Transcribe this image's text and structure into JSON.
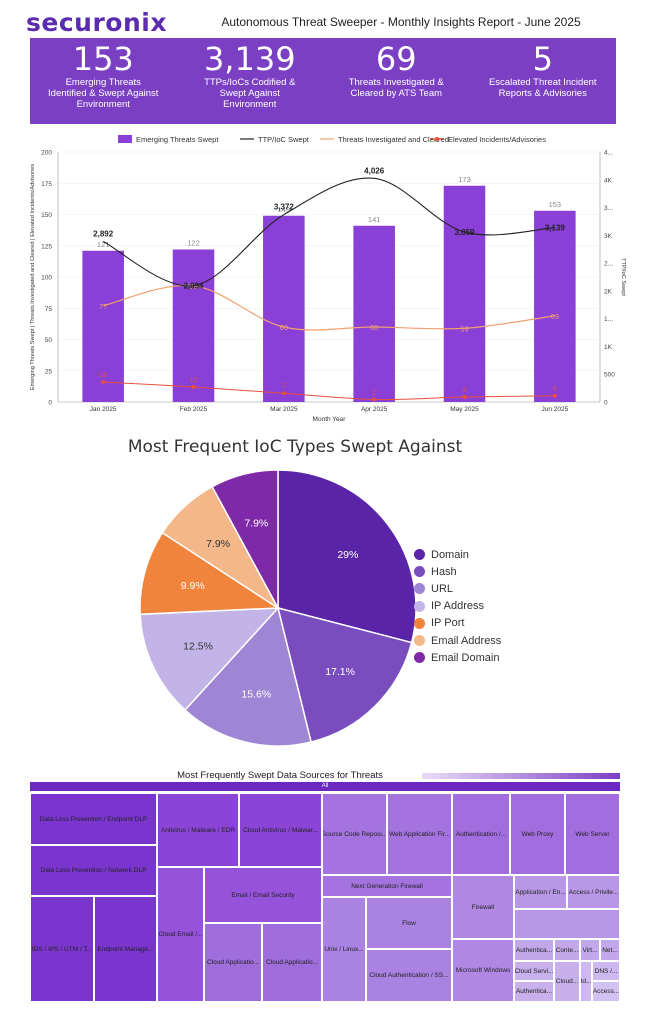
{
  "header": {
    "logo": "securonix",
    "title": "Autonomous Threat Sweeper - Monthly Insights Report - June 2025"
  },
  "kpis": [
    {
      "value": "153",
      "label": "Emerging Threats Identified & Swept Against Environment"
    },
    {
      "value": "3,139",
      "label": "TTPs/IoCs Codified & Swept Against Environment"
    },
    {
      "value": "69",
      "label": "Threats Investigated & Cleared by ATS Team"
    },
    {
      "value": "5",
      "label": "Escalated Threat Incident Reports & Advisories"
    }
  ],
  "colors": {
    "accent": "#7b3fc4",
    "bar": "#8a3fd6",
    "ttp": "#222222",
    "investigated": "#f0a070",
    "elevated": "#e8503a"
  },
  "chart_data": [
    {
      "type": "bar",
      "categories": [
        "Jan 2025",
        "Feb 2025",
        "Mar 2025",
        "Apr 2025",
        "May 2025",
        "Jun 2025"
      ],
      "series": [
        {
          "name": "Emerging Threats Swept",
          "kind": "bar",
          "axis": "left",
          "values": [
            121,
            122,
            149,
            141,
            173,
            153
          ],
          "labels": [
            "121",
            "122",
            "149",
            "141",
            "173",
            "153"
          ]
        },
        {
          "name": "TTP/IoC Swept",
          "kind": "line",
          "axis": "right",
          "values": [
            2892,
            2094,
            3372,
            4026,
            3059,
            3139
          ],
          "labels": [
            "2,892",
            "2,094",
            "3,372",
            "4,026",
            "3,059",
            "3,139"
          ]
        },
        {
          "name": "Threats Investigated and Cleared",
          "kind": "line",
          "axis": "left",
          "values": [
            77,
            93,
            60,
            60,
            59,
            69
          ],
          "labels": [
            "77",
            "93",
            "60",
            "60",
            "59",
            "69"
          ]
        },
        {
          "name": "Elevated Incidents/Advisories",
          "kind": "line",
          "axis": "left",
          "values": [
            16,
            12,
            7,
            2,
            4,
            5
          ],
          "labels": [
            "16",
            "12",
            "7",
            "2",
            "4",
            "5"
          ]
        }
      ],
      "xlabel": "Month Year",
      "ylabel": "Emerging Threats Swept | Threats Investigated and Cleared | Elevated Incidents/Advisories",
      "y2label": "TTP/IoC Swept",
      "ylim": [
        0,
        200
      ],
      "y2lim": [
        0,
        4500
      ],
      "yticks": [
        "0",
        "25",
        "50",
        "75",
        "100",
        "125",
        "150",
        "175",
        "200"
      ],
      "y2ticks": [
        "0",
        "500",
        "1K",
        "1...",
        "2K",
        "2...",
        "3K",
        "3...",
        "4K",
        "4..."
      ]
    },
    {
      "type": "pie",
      "title": "Most Frequent IoC Types Swept Against",
      "labels": [
        "Domain",
        "Hash",
        "URL",
        "IP Address",
        "IP Port",
        "Email Address",
        "Email Domain"
      ],
      "values": [
        29,
        17.1,
        15.6,
        12.5,
        9.9,
        7.9,
        7.9
      ],
      "display": [
        "29%",
        "17.1%",
        "15.6%",
        "12.5%",
        "9.9%",
        "7.9%",
        "7.9%"
      ],
      "colors": [
        "#5a24a8",
        "#7a4dbf",
        "#9e86d4",
        "#c2b4e6",
        "#f0843c",
        "#f4b78a",
        "#7e2aa8"
      ]
    },
    {
      "type": "treemap",
      "title": "Most Frequently Swept Data Sources for Threats",
      "root": "All",
      "labels": [
        "Data Loss Prevention / Endpoint DLP",
        "Data Loss Prevention / Network DLP",
        "IDS / IPS / UTM / T...",
        "Endpoint Manage...",
        "Antivirus / Malware / EDR",
        "Cloud Antivirus / Malwar...",
        "Cloud Email /...",
        "Email / Email Security",
        "Cloud Applicatio...",
        "Cloud Applicatio...",
        "Source Code Reposi...",
        "Web Application Fir...",
        "Next Generation Firewall",
        "Unix / Linux...",
        "Flow",
        "Cloud Authentication / SS...",
        "Authentication /...",
        "Web Proxy",
        "Web Server",
        "Firewall",
        "Microsoft Windows",
        "Application / En...",
        "Access / Privile...",
        "Authentica...",
        "Conte...",
        "Virt...",
        "Net...",
        "Cloud Servi...",
        "Id...",
        "DNS /...",
        "Authentica...",
        "Cloud...",
        "Access..."
      ]
    }
  ]
}
